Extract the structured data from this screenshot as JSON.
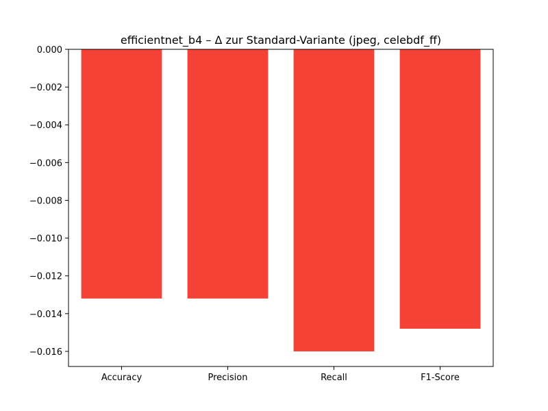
{
  "chart_data": {
    "type": "bar",
    "title": "efficientnet_b4 – Δ zur Standard-Variante (jpeg, celebdf_ff)",
    "xlabel": "",
    "ylabel": "",
    "categories": [
      "Accuracy",
      "Precision",
      "Recall",
      "F1-Score"
    ],
    "values": [
      -0.0132,
      -0.0132,
      -0.016,
      -0.0148
    ],
    "ylim": [
      -0.0168,
      0.0
    ],
    "yticks": [
      0.0,
      -0.002,
      -0.004,
      -0.006,
      -0.008,
      -0.01,
      -0.012,
      -0.014,
      -0.016
    ],
    "ytick_labels": [
      "0.000",
      "−0.002",
      "−0.004",
      "−0.006",
      "−0.008",
      "−0.010",
      "−0.012",
      "−0.014",
      "−0.016"
    ],
    "bar_color": "#f44336",
    "grid": false,
    "legend": "none"
  }
}
